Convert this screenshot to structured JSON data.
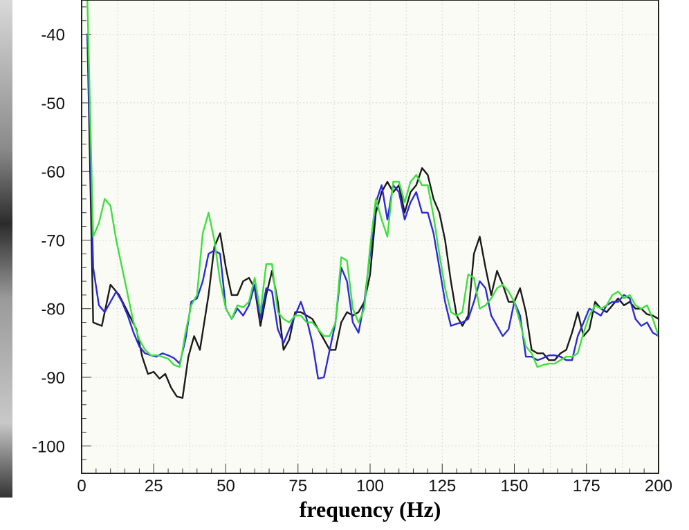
{
  "chart_data": {
    "type": "line",
    "title": "",
    "xlabel": "frequency (Hz)",
    "ylabel": "",
    "xlim": [
      0,
      200
    ],
    "ylim": [
      -104,
      -35
    ],
    "grid": true,
    "legend": "none",
    "x_ticks": [
      0,
      25,
      50,
      75,
      100,
      125,
      150,
      175,
      200
    ],
    "y_ticks": [
      -40,
      -50,
      -60,
      -70,
      -80,
      -90,
      -100
    ],
    "series": [
      {
        "color": "#1a1a1a",
        "points": [
          [
            2,
            -40
          ],
          [
            4,
            -82
          ],
          [
            7,
            -82.5
          ],
          [
            10,
            -76.5
          ],
          [
            13,
            -78
          ],
          [
            16,
            -80.5
          ],
          [
            19,
            -83
          ],
          [
            21,
            -87
          ],
          [
            23,
            -89.5
          ],
          [
            25,
            -89.2
          ],
          [
            27,
            -90.2
          ],
          [
            29,
            -89.5
          ],
          [
            31,
            -91.5
          ],
          [
            33,
            -92.8
          ],
          [
            35,
            -93
          ],
          [
            37,
            -87
          ],
          [
            39,
            -84
          ],
          [
            41,
            -86
          ],
          [
            44,
            -78
          ],
          [
            46,
            -71
          ],
          [
            48,
            -69
          ],
          [
            50,
            -74
          ],
          [
            52,
            -78
          ],
          [
            54,
            -78
          ],
          [
            56,
            -76
          ],
          [
            58,
            -75.5
          ],
          [
            60,
            -77
          ],
          [
            62,
            -82.5
          ],
          [
            64,
            -78
          ],
          [
            66,
            -74.5
          ],
          [
            68,
            -79
          ],
          [
            70,
            -86
          ],
          [
            72,
            -84.5
          ],
          [
            74,
            -80.5
          ],
          [
            76,
            -80.5
          ],
          [
            78,
            -81
          ],
          [
            80,
            -81.5
          ],
          [
            82,
            -83
          ],
          [
            84,
            -84.5
          ],
          [
            86,
            -86
          ],
          [
            88,
            -86
          ],
          [
            90,
            -82
          ],
          [
            92,
            -80.5
          ],
          [
            94,
            -81
          ],
          [
            96,
            -80.5
          ],
          [
            98,
            -79
          ],
          [
            100,
            -75
          ],
          [
            102,
            -66
          ],
          [
            104,
            -63
          ],
          [
            106,
            -61.5
          ],
          [
            108,
            -63
          ],
          [
            110,
            -62
          ],
          [
            112,
            -66
          ],
          [
            114,
            -63
          ],
          [
            116,
            -62
          ],
          [
            118,
            -59.5
          ],
          [
            120,
            -60.5
          ],
          [
            122,
            -64
          ],
          [
            124,
            -66
          ],
          [
            126,
            -70
          ],
          [
            128,
            -76
          ],
          [
            130,
            -81
          ],
          [
            132,
            -82.5
          ],
          [
            134,
            -81
          ],
          [
            136,
            -72
          ],
          [
            138,
            -69.5
          ],
          [
            140,
            -74
          ],
          [
            142,
            -78
          ],
          [
            144,
            -74.5
          ],
          [
            146,
            -76.5
          ],
          [
            148,
            -79
          ],
          [
            150,
            -79
          ],
          [
            152,
            -77
          ],
          [
            154,
            -80.5
          ],
          [
            156,
            -86
          ],
          [
            158,
            -86.5
          ],
          [
            160,
            -86.5
          ],
          [
            162,
            -87.5
          ],
          [
            164,
            -87.5
          ],
          [
            166,
            -86.5
          ],
          [
            168,
            -86
          ],
          [
            170,
            -83.5
          ],
          [
            172,
            -80.5
          ],
          [
            174,
            -84
          ],
          [
            176,
            -83
          ],
          [
            178,
            -79
          ],
          [
            180,
            -80
          ],
          [
            182,
            -80.5
          ],
          [
            184,
            -79.5
          ],
          [
            186,
            -78.5
          ],
          [
            188,
            -79.5
          ],
          [
            190,
            -79
          ],
          [
            192,
            -80
          ],
          [
            194,
            -80
          ],
          [
            196,
            -80.8
          ],
          [
            198,
            -81
          ],
          [
            200,
            -81.5
          ]
        ]
      },
      {
        "color": "#2a2ad8",
        "points": [
          [
            2,
            -40
          ],
          [
            4,
            -74
          ],
          [
            6,
            -79.5
          ],
          [
            8,
            -80.5
          ],
          [
            10,
            -79
          ],
          [
            12,
            -77.5
          ],
          [
            14,
            -79
          ],
          [
            16,
            -81
          ],
          [
            18,
            -83.5
          ],
          [
            20,
            -85.5
          ],
          [
            22,
            -86.5
          ],
          [
            24,
            -86.8
          ],
          [
            26,
            -87
          ],
          [
            28,
            -86.5
          ],
          [
            30,
            -86.8
          ],
          [
            32,
            -87.2
          ],
          [
            34,
            -88
          ],
          [
            36,
            -84.5
          ],
          [
            38,
            -79
          ],
          [
            40,
            -78.5
          ],
          [
            42,
            -76
          ],
          [
            44,
            -72
          ],
          [
            46,
            -71.5
          ],
          [
            48,
            -72
          ],
          [
            50,
            -80
          ],
          [
            52,
            -81.5
          ],
          [
            54,
            -80
          ],
          [
            56,
            -81
          ],
          [
            58,
            -79.5
          ],
          [
            60,
            -76.5
          ],
          [
            62,
            -81.5
          ],
          [
            64,
            -77
          ],
          [
            66,
            -77.5
          ],
          [
            68,
            -83
          ],
          [
            70,
            -85
          ],
          [
            72,
            -83
          ],
          [
            74,
            -81
          ],
          [
            76,
            -79
          ],
          [
            78,
            -81.5
          ],
          [
            80,
            -85
          ],
          [
            82,
            -90.2
          ],
          [
            84,
            -90
          ],
          [
            86,
            -86
          ],
          [
            88,
            -82
          ],
          [
            90,
            -74
          ],
          [
            92,
            -76
          ],
          [
            94,
            -82
          ],
          [
            96,
            -83.5
          ],
          [
            98,
            -79
          ],
          [
            100,
            -72
          ],
          [
            102,
            -64.5
          ],
          [
            104,
            -62
          ],
          [
            106,
            -67
          ],
          [
            108,
            -62
          ],
          [
            110,
            -63
          ],
          [
            112,
            -67
          ],
          [
            114,
            -64.5
          ],
          [
            116,
            -63
          ],
          [
            118,
            -66
          ],
          [
            120,
            -66
          ],
          [
            122,
            -69
          ],
          [
            124,
            -74
          ],
          [
            126,
            -79
          ],
          [
            128,
            -82.5
          ],
          [
            130,
            -82.2
          ],
          [
            132,
            -82
          ],
          [
            134,
            -81.5
          ],
          [
            136,
            -79
          ],
          [
            138,
            -76
          ],
          [
            140,
            -77
          ],
          [
            142,
            -81
          ],
          [
            144,
            -82.5
          ],
          [
            146,
            -84
          ],
          [
            148,
            -83
          ],
          [
            150,
            -79
          ],
          [
            152,
            -81
          ],
          [
            154,
            -87
          ],
          [
            156,
            -87
          ],
          [
            158,
            -87.5
          ],
          [
            160,
            -87.2
          ],
          [
            162,
            -86.8
          ],
          [
            164,
            -86.8
          ],
          [
            166,
            -87
          ],
          [
            168,
            -87.5
          ],
          [
            170,
            -87.5
          ],
          [
            172,
            -84
          ],
          [
            174,
            -82
          ],
          [
            176,
            -80
          ],
          [
            178,
            -80.5
          ],
          [
            180,
            -81
          ],
          [
            182,
            -79.5
          ],
          [
            184,
            -79
          ],
          [
            186,
            -79
          ],
          [
            188,
            -78
          ],
          [
            190,
            -78.5
          ],
          [
            192,
            -81.5
          ],
          [
            194,
            -82.5
          ],
          [
            196,
            -82
          ],
          [
            198,
            -83.5
          ],
          [
            200,
            -84
          ]
        ]
      },
      {
        "color": "#3de03d",
        "points": [
          [
            2,
            -35
          ],
          [
            4,
            -69.5
          ],
          [
            6,
            -67.5
          ],
          [
            8,
            -64
          ],
          [
            10,
            -65
          ],
          [
            12,
            -70
          ],
          [
            14,
            -74
          ],
          [
            16,
            -78
          ],
          [
            18,
            -82
          ],
          [
            20,
            -84.5
          ],
          [
            22,
            -86
          ],
          [
            24,
            -86.8
          ],
          [
            26,
            -86.8
          ],
          [
            28,
            -87
          ],
          [
            30,
            -87.3
          ],
          [
            32,
            -88.2
          ],
          [
            34,
            -88.5
          ],
          [
            36,
            -83.5
          ],
          [
            38,
            -79.5
          ],
          [
            40,
            -78
          ],
          [
            42,
            -69
          ],
          [
            44,
            -66
          ],
          [
            46,
            -70
          ],
          [
            48,
            -76
          ],
          [
            50,
            -80
          ],
          [
            52,
            -81.5
          ],
          [
            54,
            -79.5
          ],
          [
            56,
            -79.8
          ],
          [
            58,
            -79
          ],
          [
            60,
            -75.5
          ],
          [
            62,
            -80.5
          ],
          [
            64,
            -73.5
          ],
          [
            66,
            -73.5
          ],
          [
            68,
            -80.5
          ],
          [
            70,
            -81.5
          ],
          [
            72,
            -82
          ],
          [
            74,
            -81
          ],
          [
            76,
            -81
          ],
          [
            78,
            -82
          ],
          [
            80,
            -82
          ],
          [
            82,
            -83
          ],
          [
            84,
            -84
          ],
          [
            86,
            -84
          ],
          [
            88,
            -82
          ],
          [
            90,
            -72.5
          ],
          [
            92,
            -73
          ],
          [
            94,
            -80
          ],
          [
            96,
            -82
          ],
          [
            98,
            -80
          ],
          [
            100,
            -71
          ],
          [
            102,
            -64
          ],
          [
            104,
            -67
          ],
          [
            106,
            -69.5
          ],
          [
            108,
            -61.5
          ],
          [
            110,
            -61.5
          ],
          [
            112,
            -64.5
          ],
          [
            114,
            -61.5
          ],
          [
            116,
            -60.5
          ],
          [
            118,
            -62
          ],
          [
            120,
            -62
          ],
          [
            122,
            -66.5
          ],
          [
            124,
            -72
          ],
          [
            126,
            -77
          ],
          [
            128,
            -80.5
          ],
          [
            130,
            -81
          ],
          [
            132,
            -80.5
          ],
          [
            134,
            -75
          ],
          [
            136,
            -75.5
          ],
          [
            138,
            -80
          ],
          [
            140,
            -79.5
          ],
          [
            142,
            -78.5
          ],
          [
            144,
            -77
          ],
          [
            146,
            -76.5
          ],
          [
            148,
            -77.5
          ],
          [
            150,
            -79
          ],
          [
            152,
            -82
          ],
          [
            154,
            -85.5
          ],
          [
            156,
            -86.5
          ],
          [
            158,
            -88.5
          ],
          [
            160,
            -88.2
          ],
          [
            162,
            -88
          ],
          [
            164,
            -88
          ],
          [
            166,
            -87.5
          ],
          [
            168,
            -87
          ],
          [
            170,
            -87
          ],
          [
            172,
            -86.5
          ],
          [
            174,
            -83.5
          ],
          [
            176,
            -81
          ],
          [
            178,
            -79.5
          ],
          [
            180,
            -80
          ],
          [
            182,
            -79.5
          ],
          [
            184,
            -78
          ],
          [
            186,
            -77.5
          ],
          [
            188,
            -78.5
          ],
          [
            190,
            -78
          ],
          [
            192,
            -79.5
          ],
          [
            194,
            -80
          ],
          [
            196,
            -79.5
          ],
          [
            198,
            -81.5
          ],
          [
            200,
            -84
          ]
        ]
      }
    ]
  }
}
